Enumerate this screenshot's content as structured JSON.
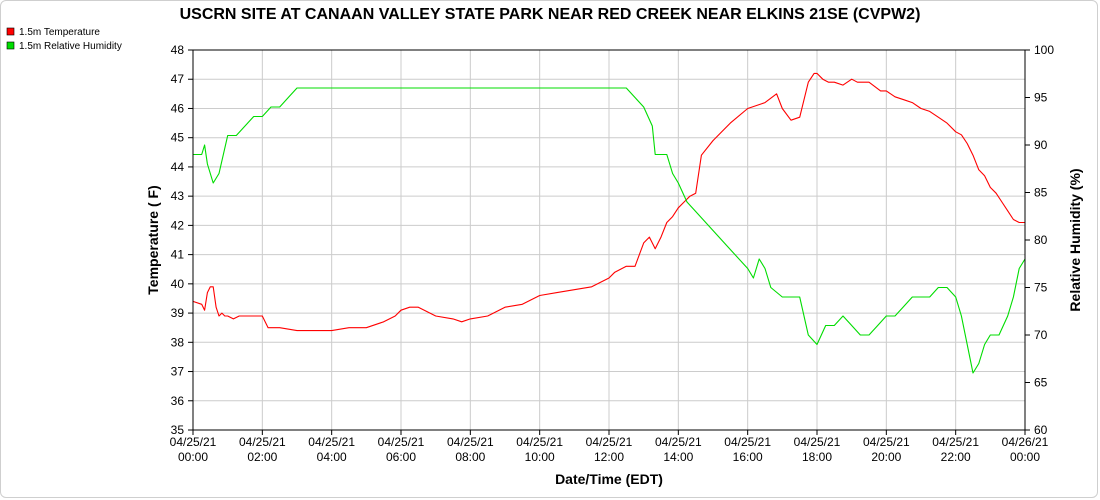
{
  "chart_data": {
    "type": "line",
    "title": "USCRN SITE AT CANAAN VALLEY STATE PARK NEAR RED CREEK NEAR ELKINS 21SE (CVPW2)",
    "xlabel": "Date/Time (EDT)",
    "ylabel": "Temperature ( F)",
    "y2label": "Relative Humidity (%)",
    "x_ticks": [
      {
        "date": "04/25/21",
        "time": "00:00"
      },
      {
        "date": "04/25/21",
        "time": "02:00"
      },
      {
        "date": "04/25/21",
        "time": "04:00"
      },
      {
        "date": "04/25/21",
        "time": "06:00"
      },
      {
        "date": "04/25/21",
        "time": "08:00"
      },
      {
        "date": "04/25/21",
        "time": "10:00"
      },
      {
        "date": "04/25/21",
        "time": "12:00"
      },
      {
        "date": "04/25/21",
        "time": "14:00"
      },
      {
        "date": "04/25/21",
        "time": "16:00"
      },
      {
        "date": "04/25/21",
        "time": "18:00"
      },
      {
        "date": "04/25/21",
        "time": "20:00"
      },
      {
        "date": "04/25/21",
        "time": "22:00"
      },
      {
        "date": "04/26/21",
        "time": "00:00"
      }
    ],
    "xlim": [
      "04/25/21 00:00",
      "04/26/21 00:00"
    ],
    "ylim": [
      35,
      48
    ],
    "y_ticks": [
      35,
      36,
      37,
      38,
      39,
      40,
      41,
      42,
      43,
      44,
      45,
      46,
      47,
      48
    ],
    "y2lim": [
      60,
      100
    ],
    "y2_ticks": [
      60,
      65,
      70,
      75,
      80,
      85,
      90,
      95,
      100
    ],
    "grid": true,
    "legend_position": "top-left",
    "series": [
      {
        "name": "1.5m Temperature",
        "axis": "left",
        "color": "#ff0000",
        "x": [
          "00:00",
          "00:15",
          "00:20",
          "00:25",
          "00:30",
          "00:35",
          "00:40",
          "00:45",
          "00:50",
          "00:55",
          "01:00",
          "01:10",
          "01:20",
          "01:30",
          "01:40",
          "01:50",
          "02:00",
          "02:10",
          "02:20",
          "02:30",
          "03:00",
          "03:30",
          "04:00",
          "04:30",
          "05:00",
          "05:30",
          "05:50",
          "06:00",
          "06:15",
          "06:30",
          "07:00",
          "07:30",
          "07:45",
          "08:00",
          "08:30",
          "09:00",
          "09:30",
          "10:00",
          "10:30",
          "11:00",
          "11:30",
          "12:00",
          "12:10",
          "12:30",
          "12:45",
          "13:00",
          "13:10",
          "13:20",
          "13:30",
          "13:40",
          "13:50",
          "14:00",
          "14:10",
          "14:20",
          "14:30",
          "14:40",
          "15:00",
          "15:30",
          "16:00",
          "16:30",
          "16:50",
          "17:00",
          "17:15",
          "17:30",
          "17:45",
          "17:55",
          "18:00",
          "18:10",
          "18:20",
          "18:30",
          "18:45",
          "19:00",
          "19:10",
          "19:30",
          "19:50",
          "20:00",
          "20:15",
          "20:30",
          "20:45",
          "21:00",
          "21:15",
          "21:30",
          "21:45",
          "22:00",
          "22:10",
          "22:20",
          "22:30",
          "22:40",
          "22:50",
          "23:00",
          "23:10",
          "23:20",
          "23:30",
          "23:40",
          "23:50",
          "24:00"
        ],
        "values": [
          39.4,
          39.3,
          39.1,
          39.7,
          39.9,
          39.9,
          39.2,
          38.9,
          39.0,
          38.9,
          38.9,
          38.8,
          38.9,
          38.9,
          38.9,
          38.9,
          38.9,
          38.5,
          38.5,
          38.5,
          38.4,
          38.4,
          38.4,
          38.5,
          38.5,
          38.7,
          38.9,
          39.1,
          39.2,
          39.2,
          38.9,
          38.8,
          38.7,
          38.8,
          38.9,
          39.2,
          39.3,
          39.6,
          39.7,
          39.8,
          39.9,
          40.2,
          40.4,
          40.6,
          40.6,
          41.4,
          41.6,
          41.2,
          41.6,
          42.1,
          42.3,
          42.6,
          42.8,
          43.0,
          43.1,
          44.4,
          44.9,
          45.5,
          46.0,
          46.2,
          46.5,
          46.0,
          45.6,
          45.7,
          46.9,
          47.2,
          47.2,
          47.0,
          46.9,
          46.9,
          46.8,
          47.0,
          46.9,
          46.9,
          46.6,
          46.6,
          46.4,
          46.3,
          46.2,
          46.0,
          45.9,
          45.7,
          45.5,
          45.2,
          45.1,
          44.8,
          44.4,
          43.9,
          43.7,
          43.3,
          43.1,
          42.8,
          42.5,
          42.2,
          42.1,
          42.1
        ]
      },
      {
        "name": "1.5m Relative Humidity",
        "axis": "right",
        "color": "#00dd00",
        "x": [
          "00:00",
          "00:15",
          "00:20",
          "00:25",
          "00:35",
          "00:45",
          "01:00",
          "01:15",
          "01:30",
          "01:45",
          "02:00",
          "02:15",
          "02:30",
          "02:45",
          "03:00",
          "03:15",
          "03:30",
          "03:45",
          "04:00",
          "05:00",
          "06:00",
          "08:00",
          "10:00",
          "11:00",
          "11:20",
          "11:30",
          "11:40",
          "11:50",
          "12:00",
          "12:30",
          "12:45",
          "13:00",
          "13:15",
          "13:20",
          "13:30",
          "13:40",
          "13:50",
          "14:00",
          "14:15",
          "14:30",
          "15:00",
          "15:30",
          "16:00",
          "16:10",
          "16:20",
          "16:30",
          "16:40",
          "17:00",
          "17:30",
          "17:45",
          "18:00",
          "18:15",
          "18:30",
          "18:45",
          "19:00",
          "19:15",
          "19:30",
          "19:45",
          "20:00",
          "20:15",
          "20:30",
          "20:45",
          "21:00",
          "21:15",
          "21:30",
          "21:45",
          "22:00",
          "22:10",
          "22:20",
          "22:30",
          "22:40",
          "22:50",
          "23:00",
          "23:15",
          "23:30",
          "23:40",
          "23:50",
          "24:00"
        ],
        "values": [
          89,
          89,
          90,
          88,
          86,
          87,
          91,
          91,
          92,
          93,
          93,
          94,
          94,
          95,
          96,
          96,
          96,
          96,
          96,
          96,
          96,
          96,
          96,
          96,
          96,
          96,
          96,
          96,
          96,
          96,
          95,
          94,
          92,
          89,
          89,
          89,
          87,
          86,
          84,
          83,
          81,
          79,
          77,
          76,
          78,
          77,
          75,
          74,
          74,
          70,
          69,
          71,
          71,
          72,
          71,
          70,
          70,
          71,
          72,
          72,
          73,
          74,
          74,
          74,
          75,
          75,
          74,
          72,
          69,
          66,
          67,
          69,
          70,
          70,
          72,
          74,
          77,
          78
        ]
      }
    ]
  }
}
